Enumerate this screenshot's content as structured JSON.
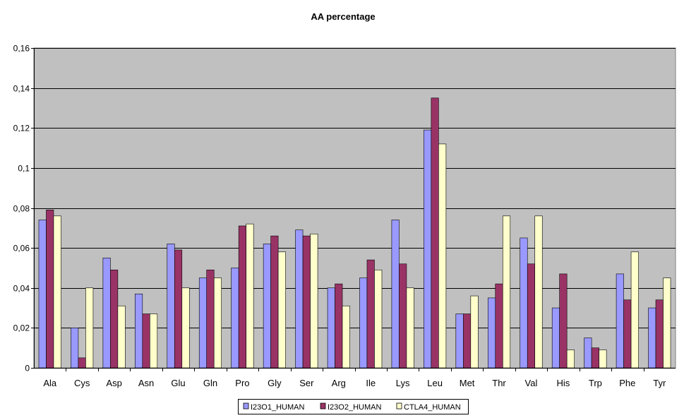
{
  "chart_data": {
    "type": "bar",
    "title": "AA percentage",
    "xlabel": "",
    "ylabel": "",
    "ylim": [
      0,
      0.16
    ],
    "ytick_labels": [
      "0",
      "0,02",
      "0,04",
      "0,06",
      "0,08",
      "0,1",
      "0,12",
      "0,14",
      "0,16"
    ],
    "grid": true,
    "legend_position": "bottom",
    "categories": [
      "Ala",
      "Cys",
      "Asp",
      "Asn",
      "Glu",
      "Gln",
      "Pro",
      "Gly",
      "Ser",
      "Arg",
      "Ile",
      "Lys",
      "Leu",
      "Met",
      "Thr",
      "Val",
      "His",
      "Trp",
      "Phe",
      "Tyr"
    ],
    "series": [
      {
        "name": "I23O1_HUMAN",
        "color": "#9999ff",
        "values": [
          0.074,
          0.02,
          0.055,
          0.037,
          0.062,
          0.045,
          0.05,
          0.062,
          0.069,
          0.04,
          0.045,
          0.074,
          0.119,
          0.027,
          0.035,
          0.065,
          0.03,
          0.015,
          0.047,
          0.03
        ]
      },
      {
        "name": "I23O2_HUMAN",
        "color": "#993366",
        "values": [
          0.079,
          0.005,
          0.049,
          0.027,
          0.059,
          0.049,
          0.071,
          0.066,
          0.066,
          0.042,
          0.054,
          0.052,
          0.135,
          0.027,
          0.042,
          0.052,
          0.047,
          0.01,
          0.034,
          0.034
        ]
      },
      {
        "name": "CTLA4_HUMAN",
        "color": "#ffffcc",
        "values": [
          0.076,
          0.04,
          0.031,
          0.027,
          0.04,
          0.045,
          0.072,
          0.058,
          0.067,
          0.031,
          0.049,
          0.04,
          0.112,
          0.036,
          0.076,
          0.076,
          0.009,
          0.009,
          0.058,
          0.045
        ]
      }
    ],
    "plot_background": "#c0c0c0"
  }
}
